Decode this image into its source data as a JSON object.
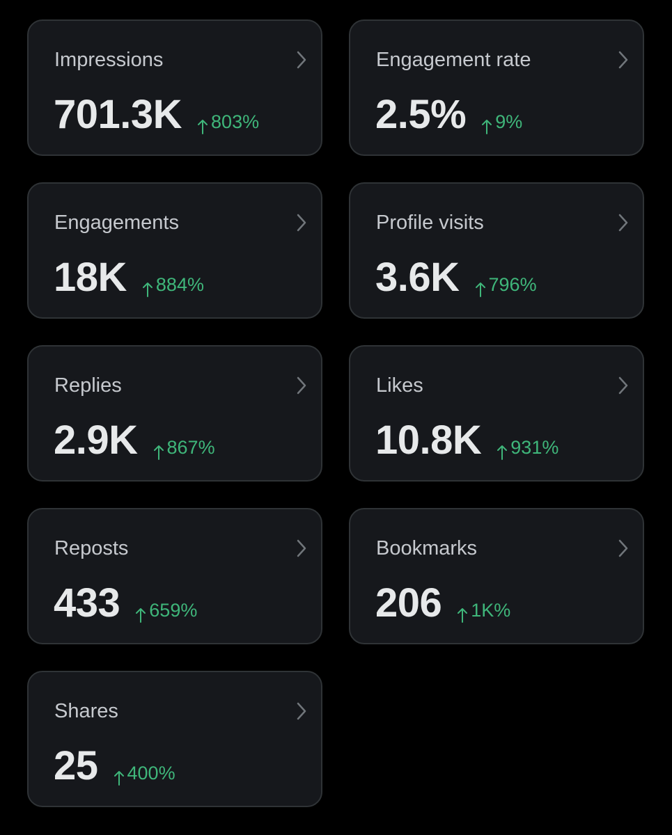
{
  "cards": [
    {
      "label": "Impressions",
      "value": "701.3K",
      "change": "803%"
    },
    {
      "label": "Engagement rate",
      "value": "2.5%",
      "change": "9%"
    },
    {
      "label": "Engagements",
      "value": "18K",
      "change": "884%"
    },
    {
      "label": "Profile visits",
      "value": "3.6K",
      "change": "796%"
    },
    {
      "label": "Replies",
      "value": "2.9K",
      "change": "867%"
    },
    {
      "label": "Likes",
      "value": "10.8K",
      "change": "931%"
    },
    {
      "label": "Reposts",
      "value": "433",
      "change": "659%"
    },
    {
      "label": "Bookmarks",
      "value": "206",
      "change": "1K%"
    },
    {
      "label": "Shares",
      "value": "25",
      "change": "400%"
    }
  ]
}
